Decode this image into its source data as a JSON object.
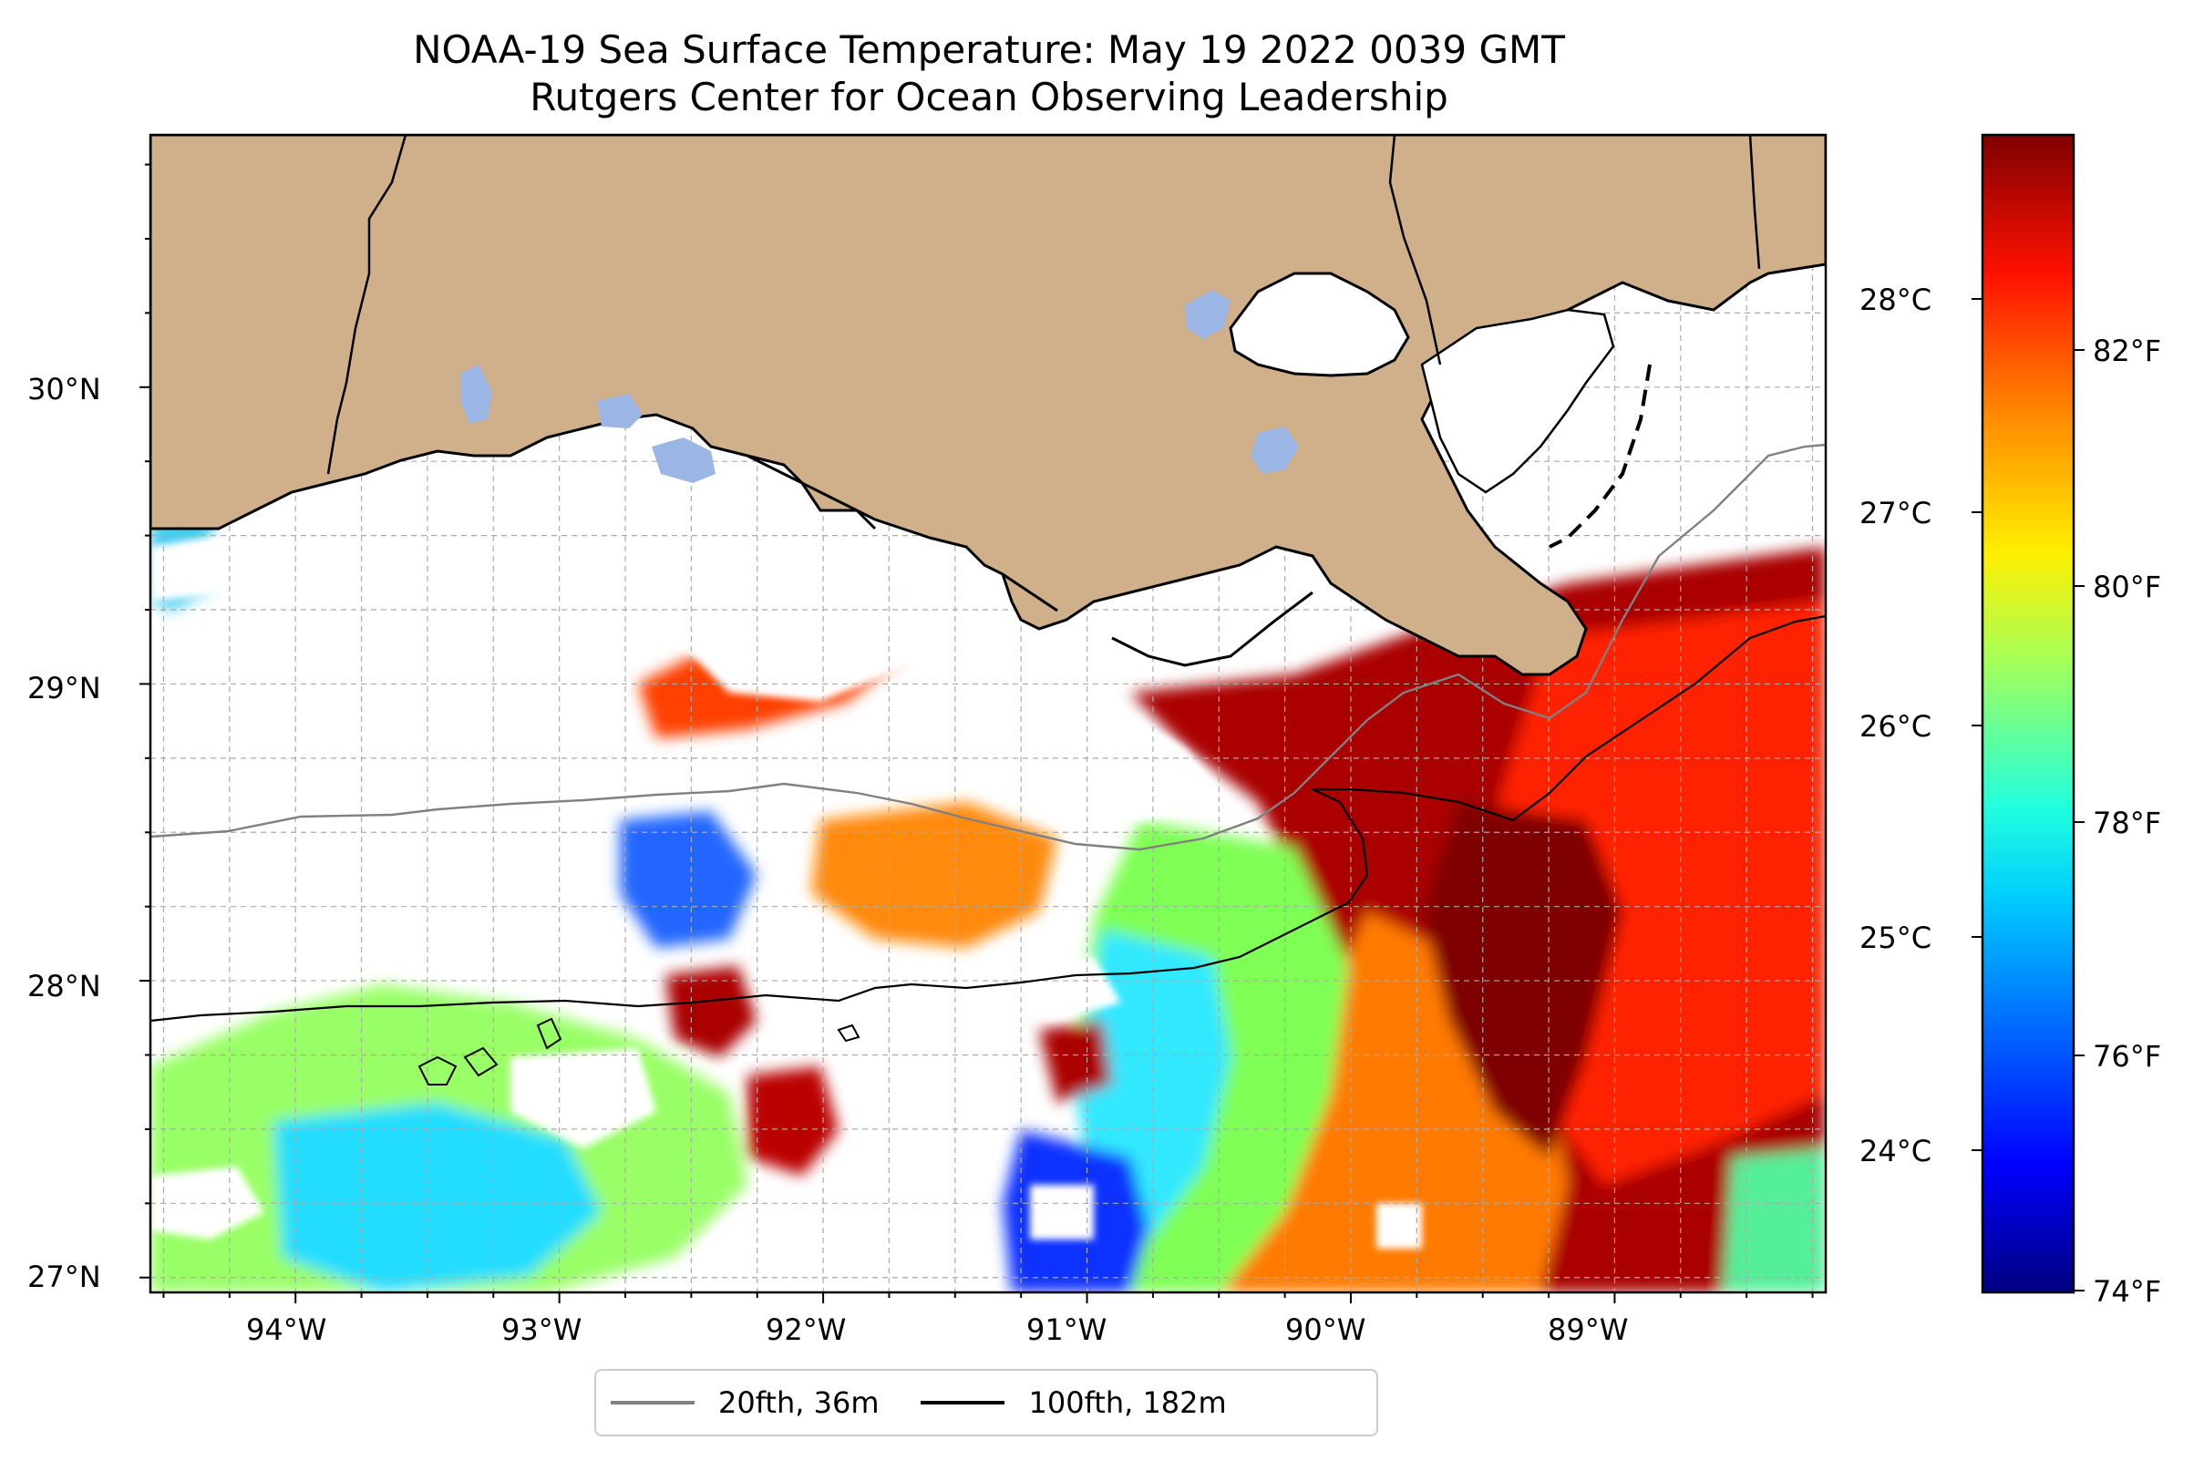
{
  "title": {
    "line1": "NOAA-19 Sea Surface Temperature: May 19 2022 0039 GMT",
    "line2": "Rutgers Center for Ocean Observing Leadership"
  },
  "map": {
    "lat_range": [
      26.95,
      30.85
    ],
    "lon_range": [
      -94.55,
      -88.2
    ],
    "lat_ticks": [
      "30°N",
      "29°N",
      "28°N",
      "27°N"
    ],
    "lon_ticks": [
      "94°W",
      "93°W",
      "92°W",
      "91°W",
      "90°W",
      "89°W"
    ],
    "land_color": "#cfb08a",
    "lake_color": "#9bb5e4",
    "gridlines": true
  },
  "colorbar": {
    "colormap": "jet",
    "celsius_ticks": [
      "28°C",
      "27°C",
      "26°C",
      "25°C",
      "24°C"
    ],
    "fahrenheit_ticks": [
      "82°F",
      "80°F",
      "78°F",
      "76°F",
      "74°F"
    ],
    "colors": [
      "#00007f",
      "#0000ff",
      "#007fff",
      "#00ffff",
      "#7fff7f",
      "#ffff00",
      "#ff7f00",
      "#ff0000",
      "#7f0000"
    ]
  },
  "legend": {
    "items": [
      {
        "label": "20fth, 36m",
        "color": "#808080"
      },
      {
        "label": "100fth, 182m",
        "color": "#000000"
      }
    ]
  }
}
